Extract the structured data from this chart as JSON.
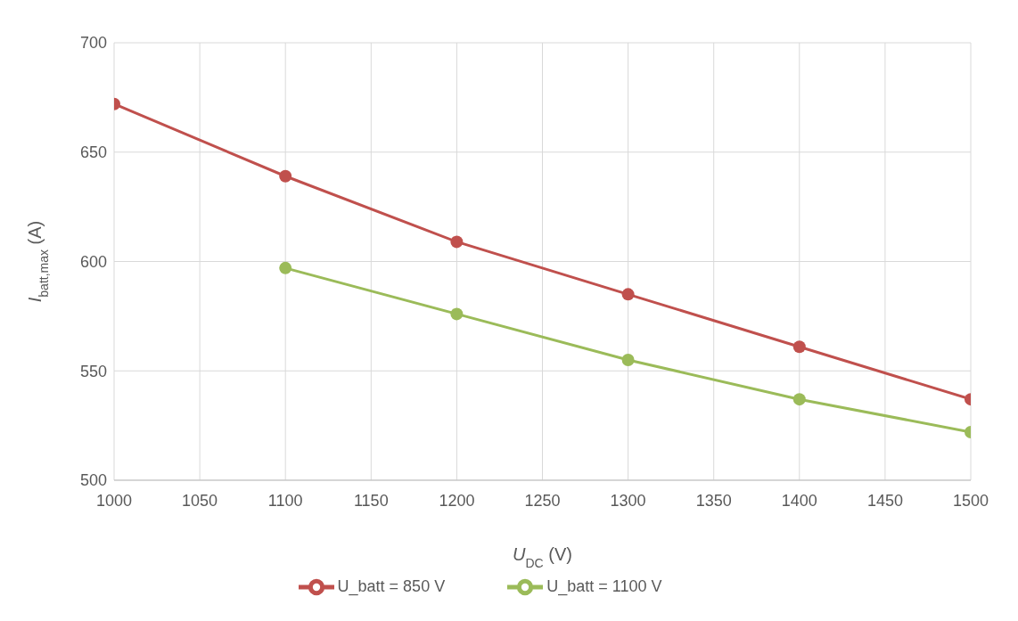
{
  "chart_data": {
    "type": "line",
    "xlabel": "U$_{DC}$ (V)",
    "ylabel": "I$_{batt,max}$ (A)",
    "x": [
      1000,
      1100,
      1200,
      1300,
      1400,
      1500
    ],
    "series": [
      {
        "name": "U_batt = 850 V",
        "color": "#c0504d",
        "values": [
          672,
          639,
          609,
          585,
          561,
          537
        ]
      },
      {
        "name": "U_batt = 1100 V",
        "color": "#9bbb59",
        "values": [
          null,
          597,
          576,
          555,
          537,
          522
        ]
      }
    ],
    "xlim": [
      1000,
      1500
    ],
    "xticks": [
      1000,
      1050,
      1100,
      1150,
      1200,
      1250,
      1300,
      1350,
      1400,
      1450,
      1500
    ],
    "ylim": [
      500,
      700
    ],
    "yticks": [
      500,
      550,
      600,
      650,
      700
    ],
    "grid": true,
    "legend": "bottom",
    "marker": "circle",
    "line_style": "solid"
  }
}
